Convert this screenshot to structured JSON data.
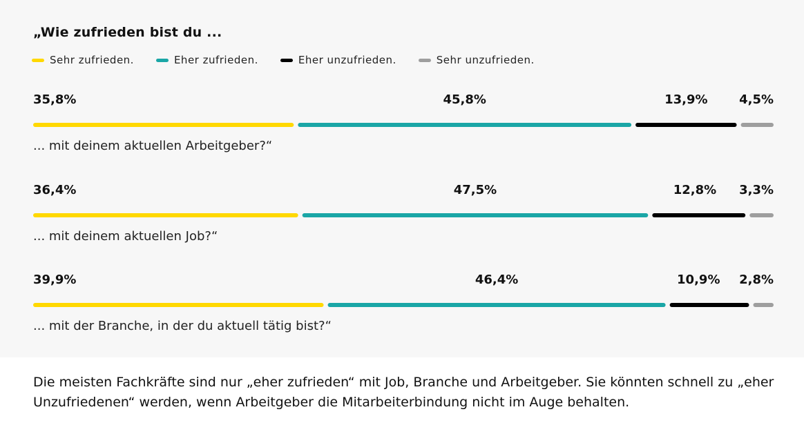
{
  "title": "„Wie zufrieden bist du ...",
  "legend": [
    {
      "label": "Sehr zufrieden.",
      "color": "#ffd800"
    },
    {
      "label": "Eher zufrieden.",
      "color": "#1aa6a6"
    },
    {
      "label": "Eher unzufrieden.",
      "color": "#000000"
    },
    {
      "label": "Sehr unzufrieden.",
      "color": "#9e9e9e"
    }
  ],
  "chart_data": {
    "type": "bar",
    "stacked": true,
    "orientation": "horizontal",
    "title": "„Wie zufrieden bist du ...",
    "categories": [
      "... mit deinem aktuellen Arbeitgeber?“",
      "... mit deinem aktuellen Job?“",
      "... mit der Branche, in der du aktuell tätig bist?“"
    ],
    "series": [
      {
        "name": "Sehr zufrieden.",
        "color": "#ffd800",
        "values": [
          35.8,
          36.4,
          39.9
        ],
        "labels": [
          "35,8%",
          "36,4%",
          "39,9%"
        ]
      },
      {
        "name": "Eher zufrieden.",
        "color": "#1aa6a6",
        "values": [
          45.8,
          47.5,
          46.4
        ],
        "labels": [
          "45,8%",
          "47,5%",
          "46,4%"
        ]
      },
      {
        "name": "Eher unzufrieden.",
        "color": "#000000",
        "values": [
          13.9,
          12.8,
          10.9
        ],
        "labels": [
          "13,9%",
          "12,8%",
          "10,9%"
        ]
      },
      {
        "name": "Sehr unzufrieden.",
        "color": "#9e9e9e",
        "values": [
          4.5,
          3.3,
          2.8
        ],
        "labels": [
          "4,5%",
          "3,3%",
          "2,8%"
        ]
      }
    ],
    "unit": "%",
    "xlim": [
      0,
      100
    ],
    "legend_position": "top-left",
    "grid": false
  },
  "footer": {
    "text": "Die meisten Fachkräfte sind nur „eher zufrieden“ mit Job, Branche und Arbeitgeber. Sie könnten schnell zu „eher Unzufriedenen“ werden, wenn Arbeitgeber die Mitarbeiterbindung nicht im Auge behalten."
  }
}
